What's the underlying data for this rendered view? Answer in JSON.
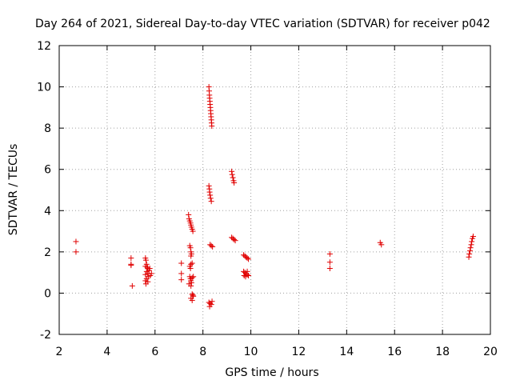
{
  "chart_data": {
    "type": "scatter",
    "title": "Day 264 of 2021, Sidereal Day-to-day VTEC variation (SDTVAR) for receiver p042",
    "xlabel": "GPS time / hours",
    "ylabel": "SDTVAR / TECUs",
    "xlim": [
      2,
      20
    ],
    "ylim": [
      -2,
      12
    ],
    "xticks": [
      "2",
      "4",
      "6",
      "8",
      "10",
      "12",
      "14",
      "16",
      "18",
      "20"
    ],
    "yticks": [
      "-2",
      "0",
      "2",
      "4",
      "6",
      "8",
      "10",
      "12"
    ],
    "grid": true,
    "marker": "+",
    "marker_color": "#e00000",
    "series": [
      {
        "name": "SDTVAR",
        "points": [
          [
            2.7,
            2.5
          ],
          [
            2.7,
            2.0
          ],
          [
            5.0,
            1.7
          ],
          [
            5.0,
            1.4
          ],
          [
            5.0,
            1.35
          ],
          [
            5.05,
            0.35
          ],
          [
            5.6,
            1.7
          ],
          [
            5.62,
            1.6
          ],
          [
            5.65,
            1.4
          ],
          [
            5.6,
            1.3
          ],
          [
            5.7,
            1.2
          ],
          [
            5.65,
            1.05
          ],
          [
            5.7,
            0.95
          ],
          [
            5.6,
            0.9
          ],
          [
            5.72,
            0.8
          ],
          [
            5.65,
            0.7
          ],
          [
            5.6,
            0.6
          ],
          [
            5.7,
            0.55
          ],
          [
            5.62,
            0.45
          ],
          [
            5.75,
            1.1
          ],
          [
            5.8,
            0.85
          ],
          [
            5.78,
            1.2
          ],
          [
            5.85,
            0.95
          ],
          [
            5.68,
            1.25
          ],
          [
            7.1,
            1.45
          ],
          [
            7.1,
            0.95
          ],
          [
            7.1,
            0.65
          ],
          [
            7.4,
            3.8
          ],
          [
            7.42,
            3.6
          ],
          [
            7.45,
            3.5
          ],
          [
            7.48,
            3.4
          ],
          [
            7.5,
            3.3
          ],
          [
            7.52,
            3.2
          ],
          [
            7.55,
            3.1
          ],
          [
            7.58,
            3.0
          ],
          [
            7.45,
            2.3
          ],
          [
            7.48,
            2.2
          ],
          [
            7.5,
            2.0
          ],
          [
            7.52,
            1.9
          ],
          [
            7.5,
            1.8
          ],
          [
            7.45,
            1.3
          ],
          [
            7.5,
            1.4
          ],
          [
            7.55,
            1.45
          ],
          [
            7.48,
            1.2
          ],
          [
            7.45,
            0.8
          ],
          [
            7.48,
            0.7
          ],
          [
            7.5,
            0.6
          ],
          [
            7.52,
            0.5
          ],
          [
            7.55,
            0.75
          ],
          [
            7.6,
            0.8
          ],
          [
            7.42,
            0.45
          ],
          [
            7.5,
            0.35
          ],
          [
            7.55,
            -0.05
          ],
          [
            7.6,
            -0.15
          ],
          [
            7.5,
            -0.25
          ],
          [
            7.55,
            -0.35
          ],
          [
            7.58,
            -0.1
          ],
          [
            8.25,
            10.0
          ],
          [
            8.26,
            9.8
          ],
          [
            8.27,
            9.6
          ],
          [
            8.28,
            9.45
          ],
          [
            8.29,
            9.3
          ],
          [
            8.3,
            9.15
          ],
          [
            8.31,
            9.0
          ],
          [
            8.32,
            8.85
          ],
          [
            8.33,
            8.7
          ],
          [
            8.34,
            8.55
          ],
          [
            8.35,
            8.4
          ],
          [
            8.36,
            8.25
          ],
          [
            8.37,
            8.1
          ],
          [
            8.25,
            5.2
          ],
          [
            8.27,
            5.05
          ],
          [
            8.28,
            4.9
          ],
          [
            8.3,
            4.75
          ],
          [
            8.32,
            4.6
          ],
          [
            8.35,
            4.45
          ],
          [
            8.3,
            2.35
          ],
          [
            8.35,
            2.3
          ],
          [
            8.4,
            2.25
          ],
          [
            8.25,
            -0.45
          ],
          [
            8.3,
            -0.5
          ],
          [
            8.35,
            -0.55
          ],
          [
            8.28,
            -0.65
          ],
          [
            8.38,
            -0.4
          ],
          [
            9.2,
            5.9
          ],
          [
            9.22,
            5.75
          ],
          [
            9.25,
            5.6
          ],
          [
            9.28,
            5.45
          ],
          [
            9.3,
            5.35
          ],
          [
            9.2,
            2.7
          ],
          [
            9.25,
            2.65
          ],
          [
            9.3,
            2.6
          ],
          [
            9.35,
            2.55
          ],
          [
            9.7,
            1.85
          ],
          [
            9.75,
            1.8
          ],
          [
            9.8,
            1.75
          ],
          [
            9.85,
            1.7
          ],
          [
            9.9,
            1.65
          ],
          [
            9.7,
            1.05
          ],
          [
            9.75,
            1.0
          ],
          [
            9.8,
            0.95
          ],
          [
            9.85,
            0.9
          ],
          [
            9.9,
            0.85
          ],
          [
            9.72,
            0.85
          ],
          [
            9.78,
            0.8
          ],
          [
            9.85,
            1.05
          ],
          [
            13.3,
            1.9
          ],
          [
            13.3,
            1.5
          ],
          [
            13.3,
            1.2
          ],
          [
            15.4,
            2.45
          ],
          [
            15.45,
            2.35
          ],
          [
            19.1,
            1.75
          ],
          [
            19.12,
            1.9
          ],
          [
            19.15,
            2.05
          ],
          [
            19.17,
            2.2
          ],
          [
            19.2,
            2.35
          ],
          [
            19.22,
            2.5
          ],
          [
            19.25,
            2.65
          ],
          [
            19.28,
            2.75
          ]
        ]
      }
    ]
  }
}
